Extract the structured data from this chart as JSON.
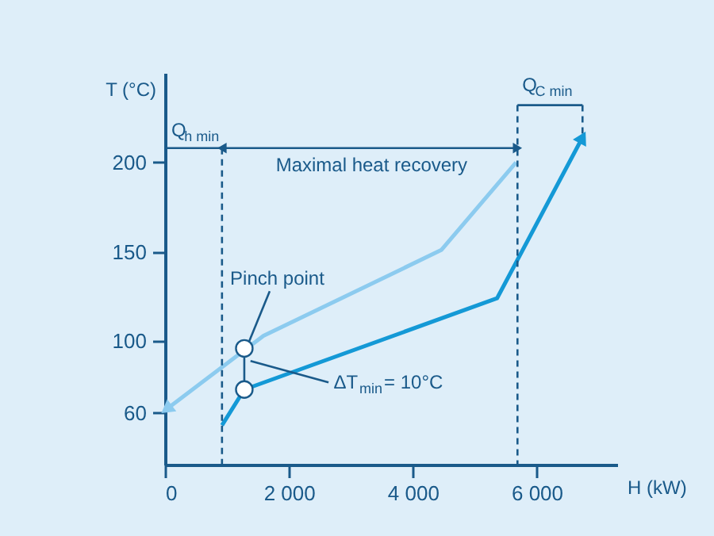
{
  "chart_data": {
    "type": "line",
    "xlabel": "H (kW)",
    "ylabel": "T (°C)",
    "xlim": [
      0,
      7300
    ],
    "ylim": [
      31,
      250
    ],
    "xticks": [
      0,
      {
        "value": 2000,
        "label": "2 000"
      },
      {
        "value": 4000,
        "label": "4 000"
      },
      {
        "value": 6000,
        "label": "6 000"
      }
    ],
    "yticks": [
      60,
      100,
      150,
      200
    ],
    "grid": false,
    "series": [
      {
        "color": "#8ccbef",
        "x": [
          25,
          1590,
          4460,
          5667
        ],
        "values": [
          62,
          103,
          151,
          200
        ]
      },
      {
        "color": "#1499d6",
        "x": [
          920,
          1280,
          5360,
          6740
        ],
        "values": [
          53,
          73,
          124,
          214
        ]
      },
      {
        "color": "#1a5a8a",
        "line_style": "dashed",
        "x": [
          920,
          920
        ],
        "values": [
          208,
          31
        ]
      },
      {
        "color": "#1a5a8a",
        "line_style": "dashed",
        "x": [
          5690,
          5690
        ],
        "values": [
          232,
          31
        ]
      },
      {
        "color": "#1a5a8a",
        "line_style": "dashed",
        "x": [
          6740,
          6740
        ],
        "values": [
          232,
          214
        ]
      },
      {
        "color": "#1a5a8a",
        "x": [
          0,
          920
        ],
        "values": [
          208,
          208
        ]
      },
      {
        "color": "#1a5a8a",
        "x": [
          920,
          5690
        ],
        "values": [
          208,
          208
        ]
      },
      {
        "color": "#1a5a8a",
        "x": [
          5690,
          6740
        ],
        "values": [
          232,
          232
        ]
      },
      {
        "color": "#1a5a8a",
        "x": [
          1280,
          1280
        ],
        "values": [
          96,
          73
        ]
      },
      {
        "color": "#1a5a8a",
        "x": [
          1690,
          1360
        ],
        "values": [
          128,
          100
        ]
      },
      {
        "color": "#1a5a8a",
        "x": [
          1380,
          2640
        ],
        "values": [
          89,
          77
        ]
      },
      {
        "type": "scatter",
        "color": "#ffffff",
        "marker": "circle",
        "x": [
          1280,
          1280
        ],
        "values": [
          96,
          73
        ]
      }
    ],
    "annotations": [
      "Q$_{h min}$",
      "Q$_{C min}$",
      "Maximal heat recovery",
      "Pinch point",
      {
        "text": "ΔT$_{min}$= 10°C",
        "x": 2720,
        "y": 77
      }
    ]
  }
}
